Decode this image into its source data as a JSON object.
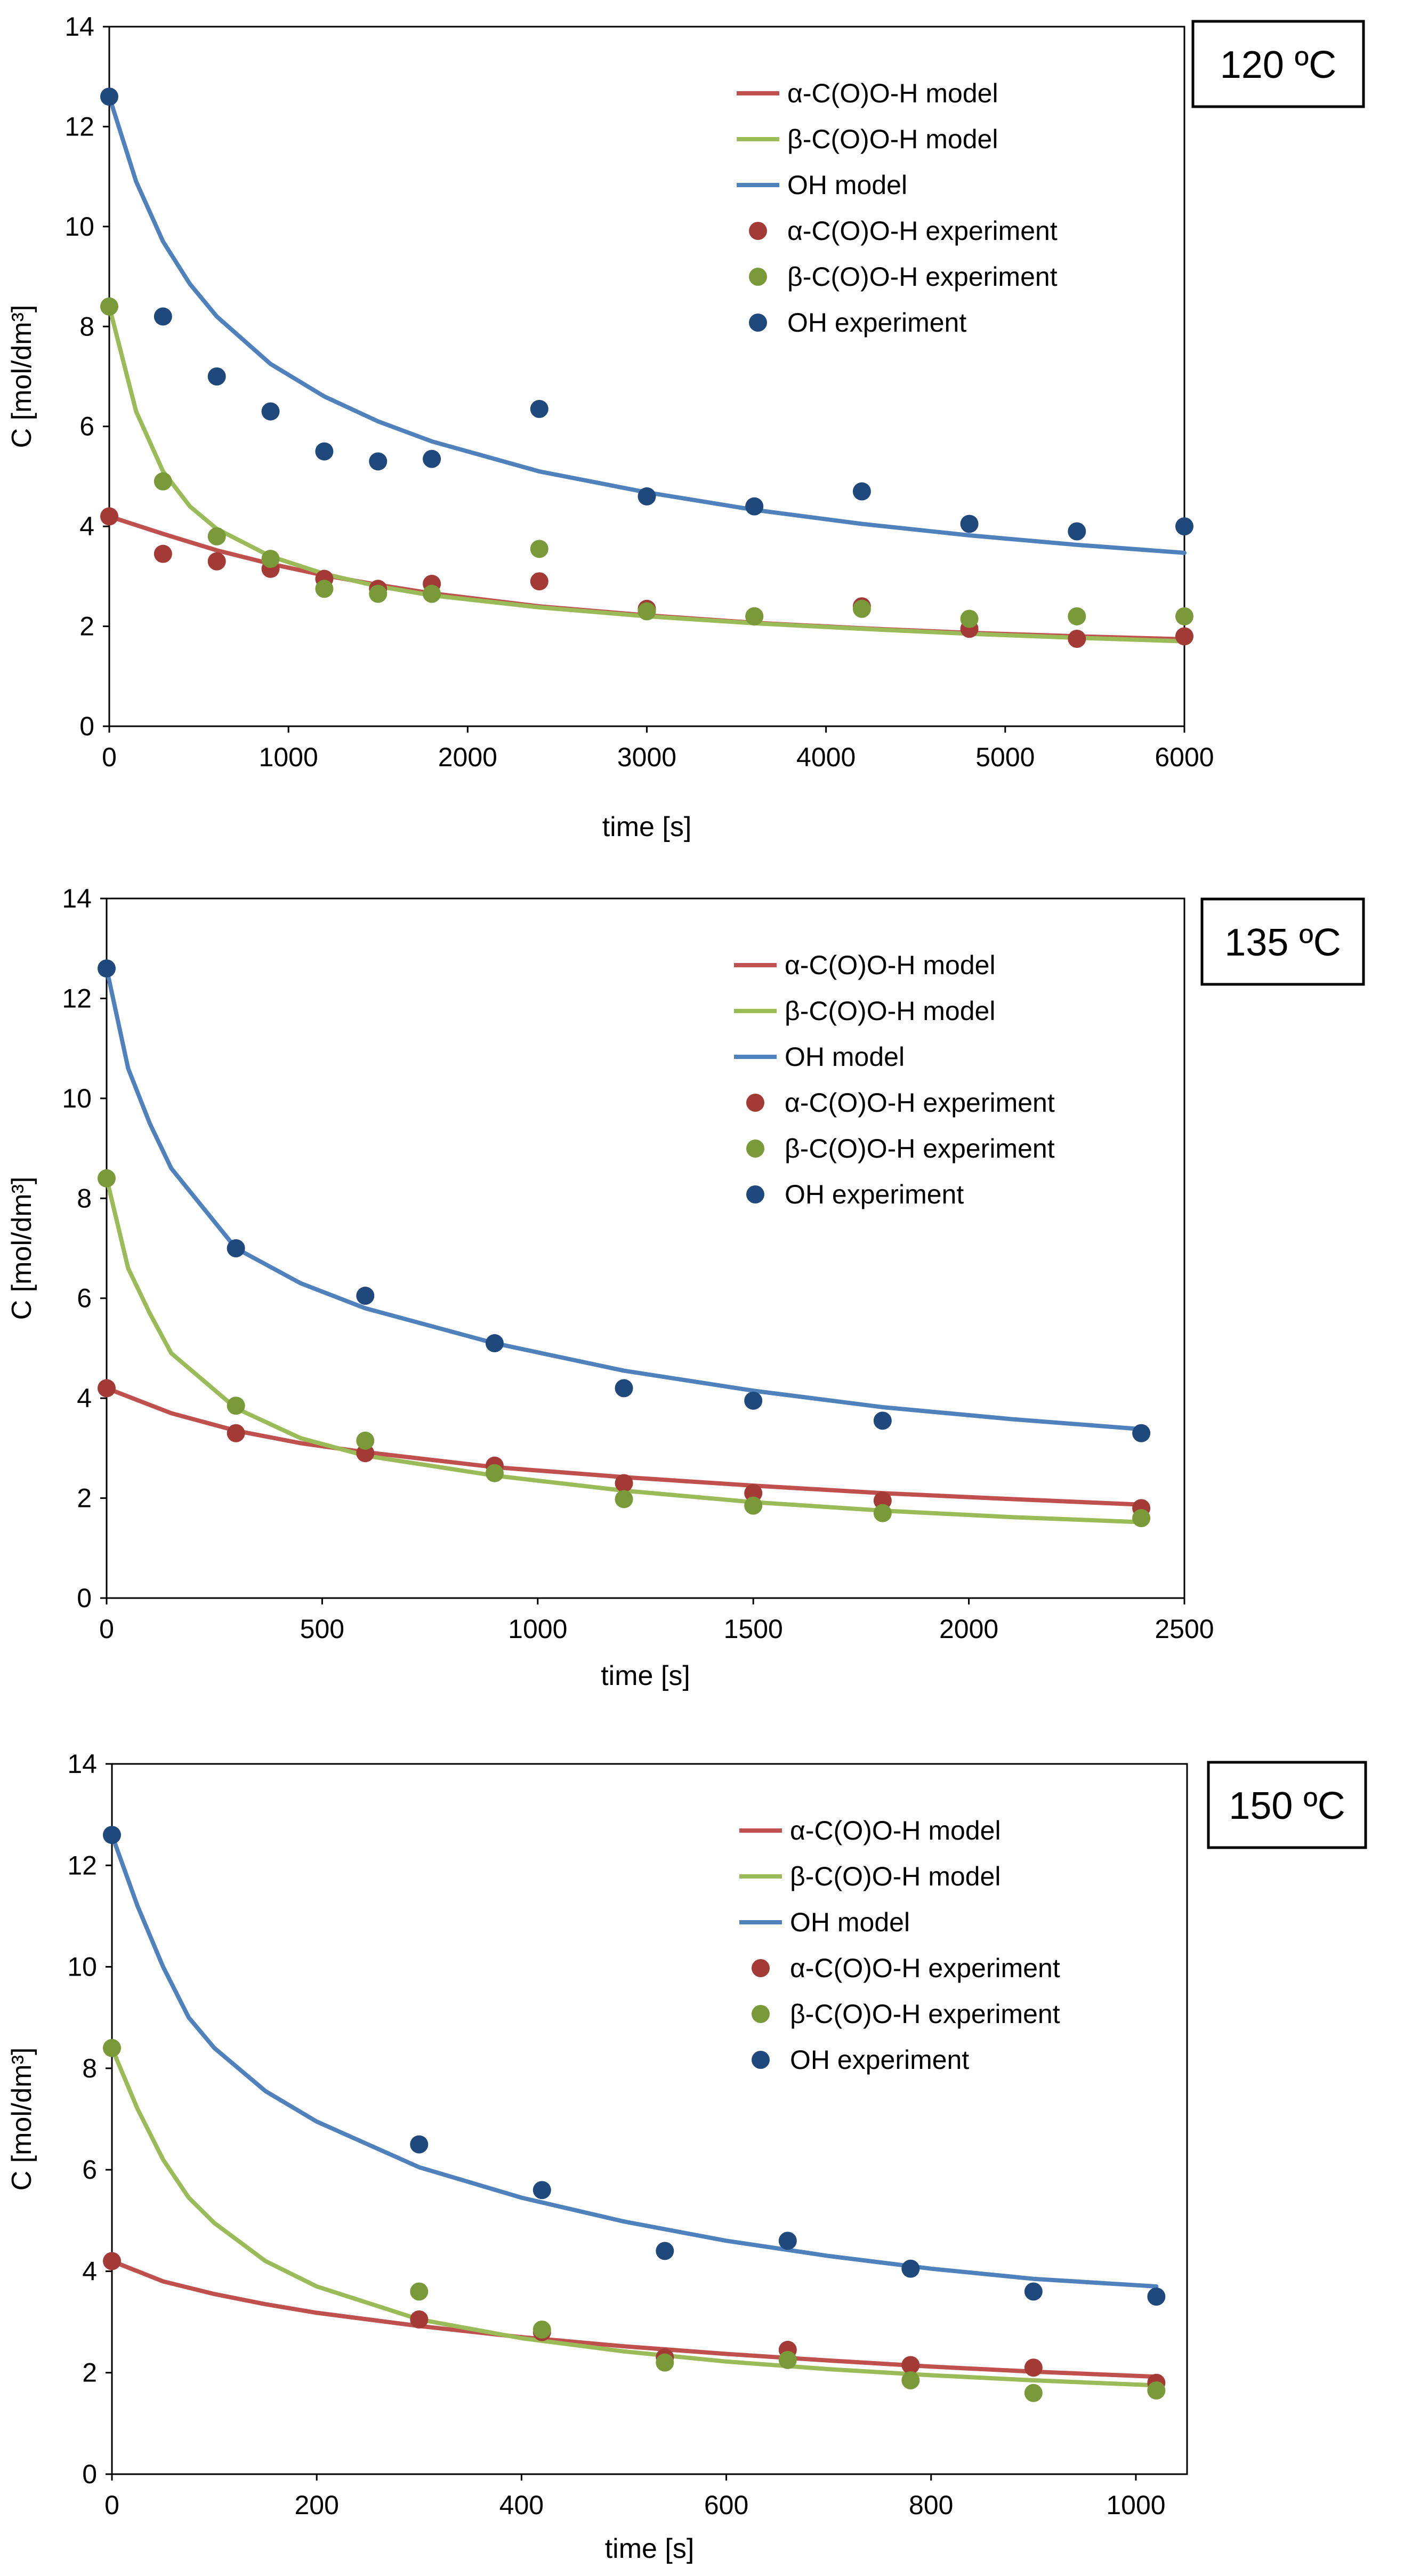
{
  "chart_data": [
    {
      "type": "line",
      "title": "120 ºC",
      "xlabel": "time [s]",
      "ylabel": "C [mol/dm³]",
      "xlim": [
        0,
        6000
      ],
      "ylim": [
        0,
        14
      ],
      "xticks": [
        0,
        1000,
        2000,
        3000,
        4000,
        5000,
        6000
      ],
      "yticks": [
        0,
        2,
        4,
        6,
        8,
        10,
        12,
        14
      ],
      "legend_position": "top-right",
      "series": [
        {
          "name": "α-C(O)O-H model",
          "kind": "line",
          "color": "#c0504d",
          "x": [
            0,
            300,
            600,
            900,
            1200,
            1500,
            1800,
            2400,
            3000,
            3600,
            4200,
            4800,
            5400,
            6000
          ],
          "y": [
            4.2,
            3.85,
            3.52,
            3.25,
            3.02,
            2.83,
            2.66,
            2.4,
            2.22,
            2.07,
            1.96,
            1.87,
            1.8,
            1.74
          ]
        },
        {
          "name": "β-C(O)O-H model",
          "kind": "line",
          "color": "#9bbb59",
          "x": [
            0,
            150,
            300,
            450,
            600,
            900,
            1200,
            1500,
            1800,
            2400,
            3000,
            3600,
            4200,
            4800,
            5400,
            6000
          ],
          "y": [
            8.4,
            6.3,
            5.1,
            4.4,
            3.95,
            3.4,
            3.05,
            2.8,
            2.62,
            2.38,
            2.2,
            2.06,
            1.95,
            1.85,
            1.77,
            1.7
          ]
        },
        {
          "name": "OH model",
          "kind": "line",
          "color": "#4f81bd",
          "x": [
            0,
            150,
            300,
            450,
            600,
            900,
            1200,
            1500,
            1800,
            2400,
            3000,
            3600,
            4200,
            4800,
            5400,
            6000
          ],
          "y": [
            12.6,
            10.9,
            9.7,
            8.85,
            8.2,
            7.25,
            6.6,
            6.1,
            5.7,
            5.1,
            4.68,
            4.33,
            4.05,
            3.82,
            3.63,
            3.47
          ]
        },
        {
          "name": "α-C(O)O-H  experiment",
          "kind": "scatter",
          "color": "#a33a36",
          "x": [
            0,
            300,
            600,
            900,
            1200,
            1500,
            1800,
            2400,
            3000,
            3600,
            4200,
            4800,
            5400,
            6000
          ],
          "y": [
            4.2,
            3.45,
            3.3,
            3.15,
            2.95,
            2.75,
            2.85,
            2.9,
            2.35,
            2.2,
            2.4,
            1.95,
            1.75,
            1.8
          ]
        },
        {
          "name": "β-C(O)O-H  experiment",
          "kind": "scatter",
          "color": "#7a9a3a",
          "x": [
            0,
            300,
            600,
            900,
            1200,
            1500,
            1800,
            2400,
            3000,
            3600,
            4200,
            4800,
            5400,
            6000
          ],
          "y": [
            8.4,
            4.9,
            3.8,
            3.35,
            2.75,
            2.65,
            2.65,
            3.55,
            2.3,
            2.2,
            2.35,
            2.15,
            2.2,
            2.2
          ]
        },
        {
          "name": "OH experiment",
          "kind": "scatter",
          "color": "#1f497d",
          "x": [
            0,
            300,
            600,
            900,
            1200,
            1500,
            1800,
            2400,
            3000,
            3600,
            4200,
            4800,
            5400,
            6000
          ],
          "y": [
            12.6,
            8.2,
            7.0,
            6.3,
            5.5,
            5.3,
            5.35,
            6.35,
            4.6,
            4.4,
            4.7,
            4.05,
            3.9,
            4.0
          ]
        }
      ]
    },
    {
      "type": "line",
      "title": "135 ºC",
      "xlabel": "time [s]",
      "ylabel": "C [mol/dm³]",
      "xlim": [
        0,
        2500
      ],
      "ylim": [
        0,
        14
      ],
      "xticks": [
        0,
        500,
        1000,
        1500,
        2000,
        2500
      ],
      "yticks": [
        0,
        2,
        4,
        6,
        8,
        10,
        12,
        14
      ],
      "legend_position": "top-right",
      "series": [
        {
          "name": "α-C(O)O-H model",
          "kind": "line",
          "color": "#c0504d",
          "x": [
            0,
            150,
            300,
            450,
            600,
            900,
            1200,
            1500,
            1800,
            2100,
            2400
          ],
          "y": [
            4.2,
            3.7,
            3.35,
            3.1,
            2.92,
            2.62,
            2.42,
            2.25,
            2.1,
            1.98,
            1.87
          ]
        },
        {
          "name": "β-C(O)O-H model",
          "kind": "line",
          "color": "#9bbb59",
          "x": [
            0,
            50,
            100,
            150,
            300,
            450,
            600,
            900,
            1200,
            1500,
            1800,
            2100,
            2400
          ],
          "y": [
            8.4,
            6.6,
            5.7,
            4.9,
            3.8,
            3.2,
            2.85,
            2.45,
            2.15,
            1.92,
            1.75,
            1.62,
            1.52
          ]
        },
        {
          "name": "OH model",
          "kind": "line",
          "color": "#4f81bd",
          "x": [
            0,
            50,
            100,
            150,
            300,
            450,
            600,
            900,
            1200,
            1500,
            1800,
            2100,
            2400
          ],
          "y": [
            12.6,
            10.6,
            9.5,
            8.6,
            7.0,
            6.3,
            5.8,
            5.1,
            4.55,
            4.15,
            3.82,
            3.58,
            3.38
          ]
        },
        {
          "name": "α-C(O)O-H  experiment",
          "kind": "scatter",
          "color": "#a33a36",
          "x": [
            0,
            300,
            600,
            900,
            1200,
            1500,
            1800,
            2400
          ],
          "y": [
            4.2,
            3.3,
            2.9,
            2.65,
            2.3,
            2.1,
            1.95,
            1.8
          ]
        },
        {
          "name": "β-C(O)O-H  experiment",
          "kind": "scatter",
          "color": "#7a9a3a",
          "x": [
            0,
            300,
            600,
            900,
            1200,
            1500,
            1800,
            2400
          ],
          "y": [
            8.4,
            3.85,
            3.15,
            2.5,
            1.98,
            1.85,
            1.7,
            1.6
          ]
        },
        {
          "name": "OH experiment",
          "kind": "scatter",
          "color": "#1f497d",
          "x": [
            0,
            300,
            600,
            900,
            1200,
            1500,
            1800,
            2400
          ],
          "y": [
            12.6,
            7.0,
            6.05,
            5.1,
            4.2,
            3.95,
            3.55,
            3.3
          ]
        }
      ]
    },
    {
      "type": "line",
      "title": "150 ºC",
      "xlabel": "time [s]",
      "ylabel": "C [mol/dm³]",
      "xlim": [
        0,
        1050
      ],
      "ylim": [
        0,
        14
      ],
      "xticks": [
        0,
        200,
        400,
        600,
        800,
        1000
      ],
      "yticks": [
        0,
        2,
        4,
        6,
        8,
        10,
        12,
        14
      ],
      "legend_position": "top-right",
      "series": [
        {
          "name": "α-C(O)O-H model",
          "kind": "line",
          "color": "#c0504d",
          "x": [
            0,
            50,
            100,
            150,
            200,
            300,
            400,
            500,
            600,
            700,
            800,
            900,
            1020
          ],
          "y": [
            4.2,
            3.8,
            3.55,
            3.35,
            3.18,
            2.92,
            2.7,
            2.52,
            2.37,
            2.24,
            2.12,
            2.02,
            1.92
          ]
        },
        {
          "name": "β-C(O)O-H model",
          "kind": "line",
          "color": "#9bbb59",
          "x": [
            0,
            25,
            50,
            75,
            100,
            150,
            200,
            300,
            400,
            500,
            600,
            700,
            800,
            900,
            1020
          ],
          "y": [
            8.4,
            7.2,
            6.2,
            5.45,
            4.95,
            4.2,
            3.7,
            3.05,
            2.68,
            2.42,
            2.22,
            2.07,
            1.95,
            1.85,
            1.75
          ]
        },
        {
          "name": "OH model",
          "kind": "line",
          "color": "#4f81bd",
          "x": [
            0,
            25,
            50,
            75,
            100,
            150,
            200,
            300,
            400,
            500,
            600,
            700,
            800,
            900,
            1020
          ],
          "y": [
            12.6,
            11.2,
            10.0,
            9.0,
            8.4,
            7.55,
            6.95,
            6.05,
            5.45,
            4.98,
            4.6,
            4.3,
            4.05,
            3.85,
            3.7
          ]
        },
        {
          "name": "α-C(O)O-H  experiment",
          "kind": "scatter",
          "color": "#a33a36",
          "x": [
            0,
            300,
            420,
            540,
            660,
            780,
            900,
            1020
          ],
          "y": [
            4.2,
            3.05,
            2.8,
            2.3,
            2.45,
            2.15,
            2.1,
            1.8
          ]
        },
        {
          "name": "β-C(O)O-H  experiment",
          "kind": "scatter",
          "color": "#7a9a3a",
          "x": [
            0,
            300,
            420,
            540,
            660,
            780,
            900,
            1020
          ],
          "y": [
            8.4,
            3.6,
            2.85,
            2.2,
            2.25,
            1.85,
            1.6,
            1.65
          ]
        },
        {
          "name": "OH experiment",
          "kind": "scatter",
          "color": "#1f497d",
          "x": [
            0,
            300,
            420,
            540,
            660,
            780,
            900,
            1020
          ],
          "y": [
            12.6,
            6.5,
            5.6,
            4.4,
            4.6,
            4.05,
            3.6,
            3.5
          ]
        }
      ]
    }
  ]
}
